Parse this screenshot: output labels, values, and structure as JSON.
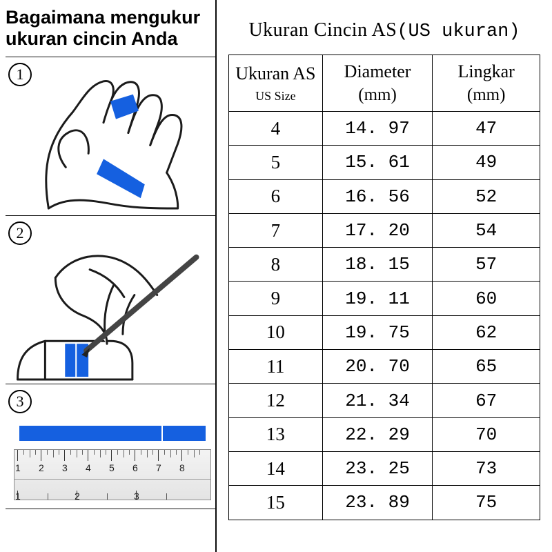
{
  "left": {
    "title_line1": "Bagaimana mengukur",
    "title_line2": "ukuran cincin Anda",
    "steps": [
      "1",
      "2",
      "3"
    ],
    "accent_color": "#1560e0",
    "ruler_cm_labels": [
      "1",
      "2",
      "3",
      "4",
      "5",
      "6",
      "7",
      "8"
    ],
    "ruler_in_labels": [
      "1",
      "2",
      "3"
    ]
  },
  "right": {
    "title_main": "Ukuran Cincin AS",
    "title_paren": "(US ukuran)",
    "columns": [
      {
        "header": "Ukuran AS",
        "sub": "US Size"
      },
      {
        "header": "Diameter",
        "unit": "(mm)"
      },
      {
        "header": "Lingkar",
        "unit": "(mm)"
      }
    ],
    "rows": [
      [
        "4",
        "14.97",
        "47"
      ],
      [
        "5",
        "15.61",
        "49"
      ],
      [
        "6",
        "16.56",
        "52"
      ],
      [
        "7",
        "17.20",
        "54"
      ],
      [
        "8",
        "18.15",
        "57"
      ],
      [
        "9",
        "19.11",
        "60"
      ],
      [
        "10",
        "19.75",
        "62"
      ],
      [
        "11",
        "20.70",
        "65"
      ],
      [
        "12",
        "21.34",
        "67"
      ],
      [
        "13",
        "22.29",
        "70"
      ],
      [
        "14",
        "23.25",
        "73"
      ],
      [
        "15",
        "23.89",
        "75"
      ]
    ]
  },
  "colors": {
    "border": "#000000",
    "background": "#ffffff",
    "strip": "#1560e0",
    "ruler_bg_top": "#f3f3f3",
    "ruler_bg_bottom": "#e4e4e4"
  }
}
